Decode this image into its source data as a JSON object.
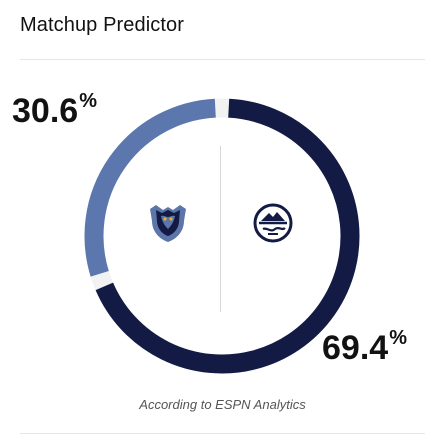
{
  "widget": {
    "title": "Matchup Predictor",
    "footer": "According to ESPN Analytics"
  },
  "matchup": {
    "left_team": {
      "icon": "grizzlies-logo-icon",
      "pct_value": 30.6,
      "pct_text": "30.6",
      "color": "#5b77ad"
    },
    "right_team": {
      "icon": "nuggets-logo-icon",
      "pct_value": 69.4,
      "pct_text": "69.4",
      "color": "#131b44"
    },
    "pct_symbol": "%"
  }
}
